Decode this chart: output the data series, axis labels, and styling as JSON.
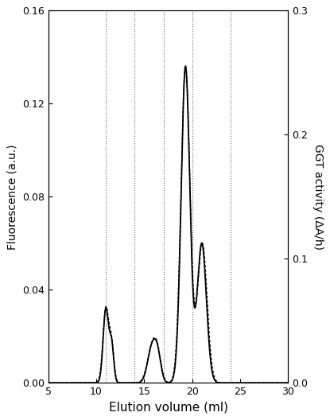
{
  "xlim": [
    5,
    30
  ],
  "ylim_left": [
    0,
    0.16
  ],
  "ylim_right": [
    0.0,
    0.3
  ],
  "yticks_left": [
    0.0,
    0.04,
    0.08,
    0.12,
    0.16
  ],
  "yticks_right": [
    0.0,
    0.1,
    0.2,
    0.3
  ],
  "xticks": [
    5,
    10,
    15,
    20,
    25,
    30
  ],
  "xlabel": "Elution volume (ml)",
  "ylabel_left": "Fluorescence (a.u.)",
  "ylabel_right": "GGT activity (ΔA/h)",
  "vlines": [
    11,
    14,
    17,
    20,
    24
  ],
  "line_color": "#000000",
  "dot_color": "#000000",
  "background_color": "#ffffff",
  "figsize": [
    4.15,
    5.28
  ],
  "dpi": 100
}
